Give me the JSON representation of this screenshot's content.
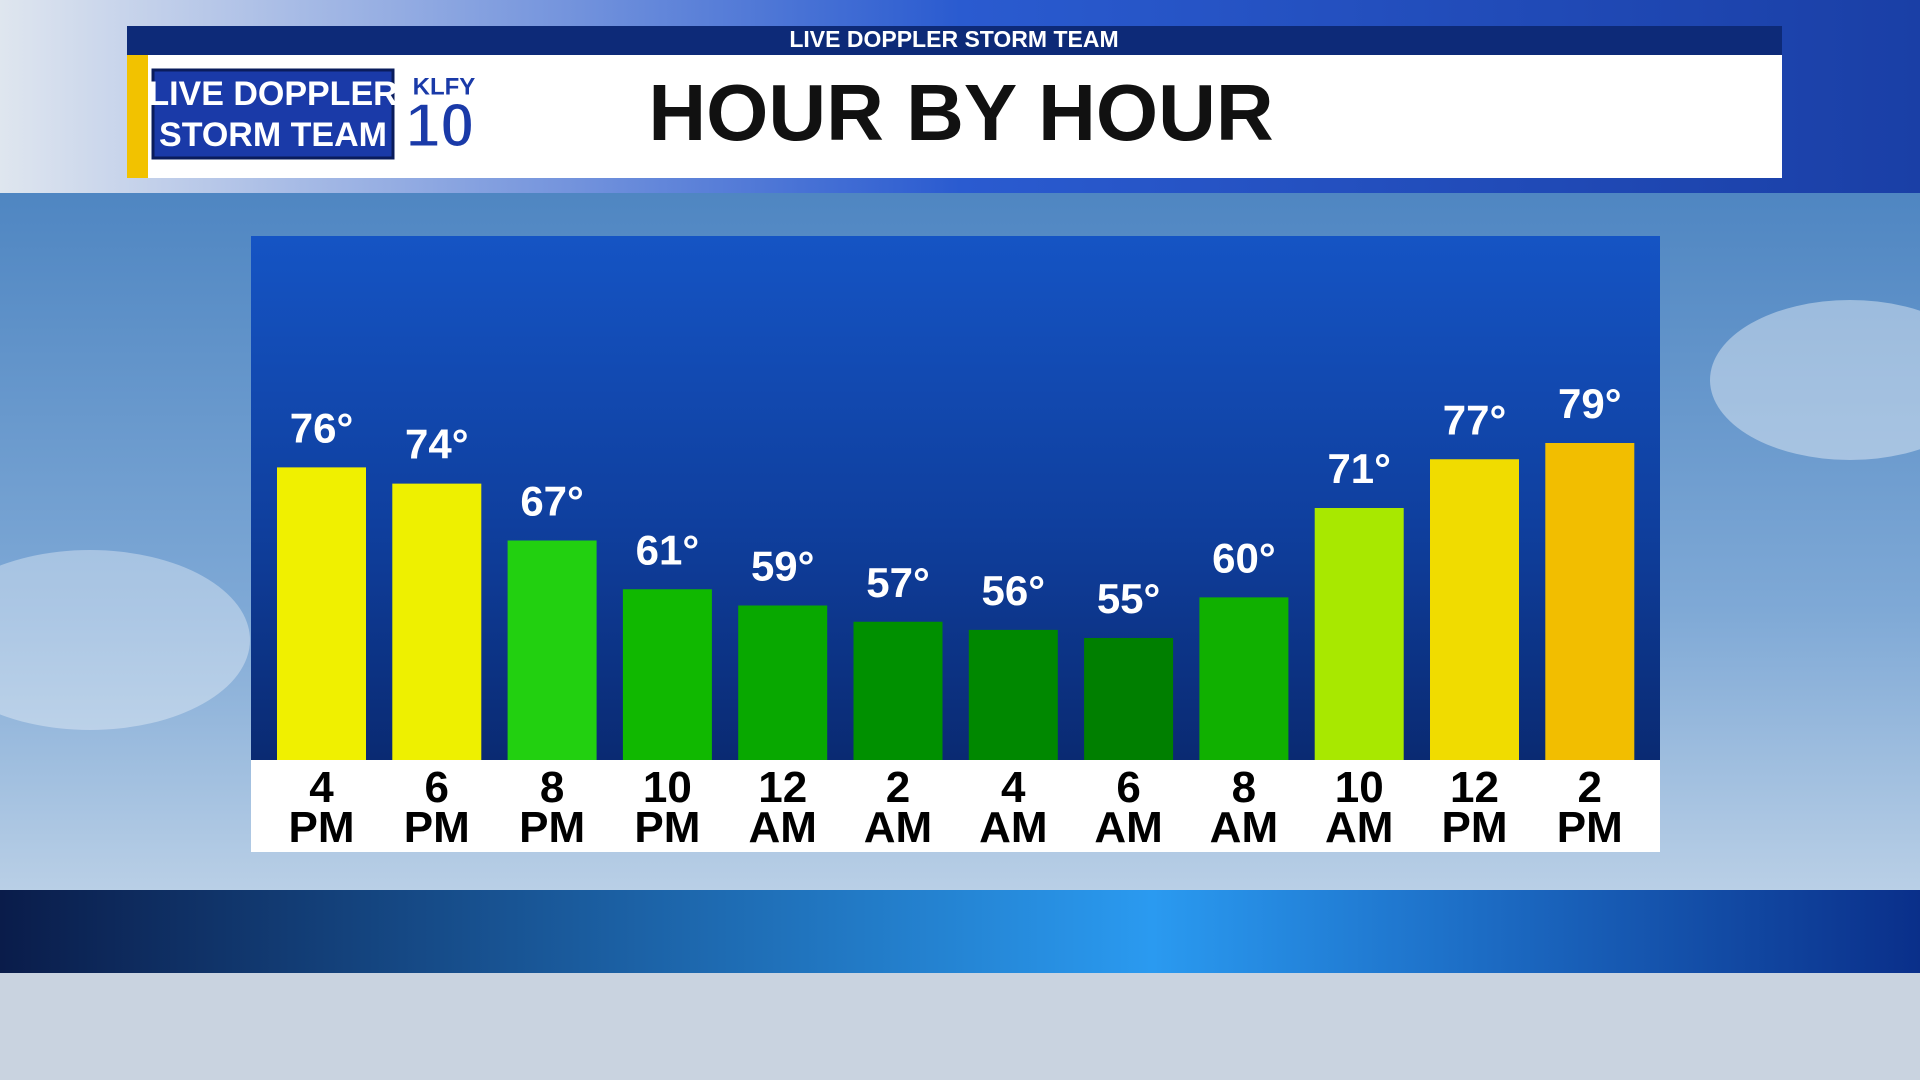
{
  "header": {
    "strip": "LIVE DOPPLER STORM TEAM",
    "title": "HOUR BY HOUR",
    "logo_line1": "LIVE DOPPLER",
    "logo_line2": "STORM TEAM",
    "station": "KLFY",
    "channel": "10"
  },
  "chart_data": {
    "type": "bar",
    "categories": [
      "4 PM",
      "6 PM",
      "8 PM",
      "10 PM",
      "12 AM",
      "2 AM",
      "4 AM",
      "6 AM",
      "8 AM",
      "10 AM",
      "12 PM",
      "2 PM"
    ],
    "values": [
      76,
      74,
      67,
      61,
      59,
      57,
      56,
      55,
      60,
      71,
      77,
      79
    ],
    "value_labels": [
      "76°",
      "74°",
      "67°",
      "61°",
      "59°",
      "57°",
      "56°",
      "55°",
      "60°",
      "71°",
      "77°",
      "79°"
    ],
    "colors": [
      "#f0f000",
      "#eef000",
      "#22d010",
      "#10b800",
      "#08a800",
      "#009000",
      "#008800",
      "#007f00",
      "#10b000",
      "#a8e800",
      "#f0dc00",
      "#f2be00"
    ]
  }
}
